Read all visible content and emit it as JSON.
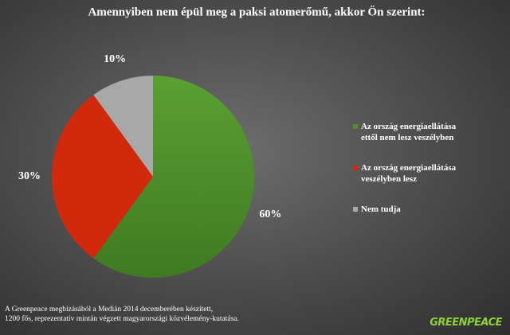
{
  "chart_data": {
    "type": "pie",
    "title": "Amennyiben nem épül meg a paksi atomerőmű, akkor Ön szerint:",
    "categories": [
      "Az ország energiaellátása ettől nem lesz veszélyben",
      "Az ország energiaellátása veszélyben lesz",
      "Nem tudja"
    ],
    "values": [
      60,
      30,
      10
    ],
    "value_labels": [
      "60%",
      "30%",
      "10%"
    ],
    "colors": [
      "#4f8f2c",
      "#d0290b",
      "#a8a8a8"
    ],
    "legend": "right"
  },
  "notes": [
    "A Greenpeace megbízásából a Medián 2014 decemberében készített,",
    "1200 fős, reprezentatív mintán végzett magyarországi közvélemény-kutatása."
  ],
  "logo": "GREENPEACE"
}
